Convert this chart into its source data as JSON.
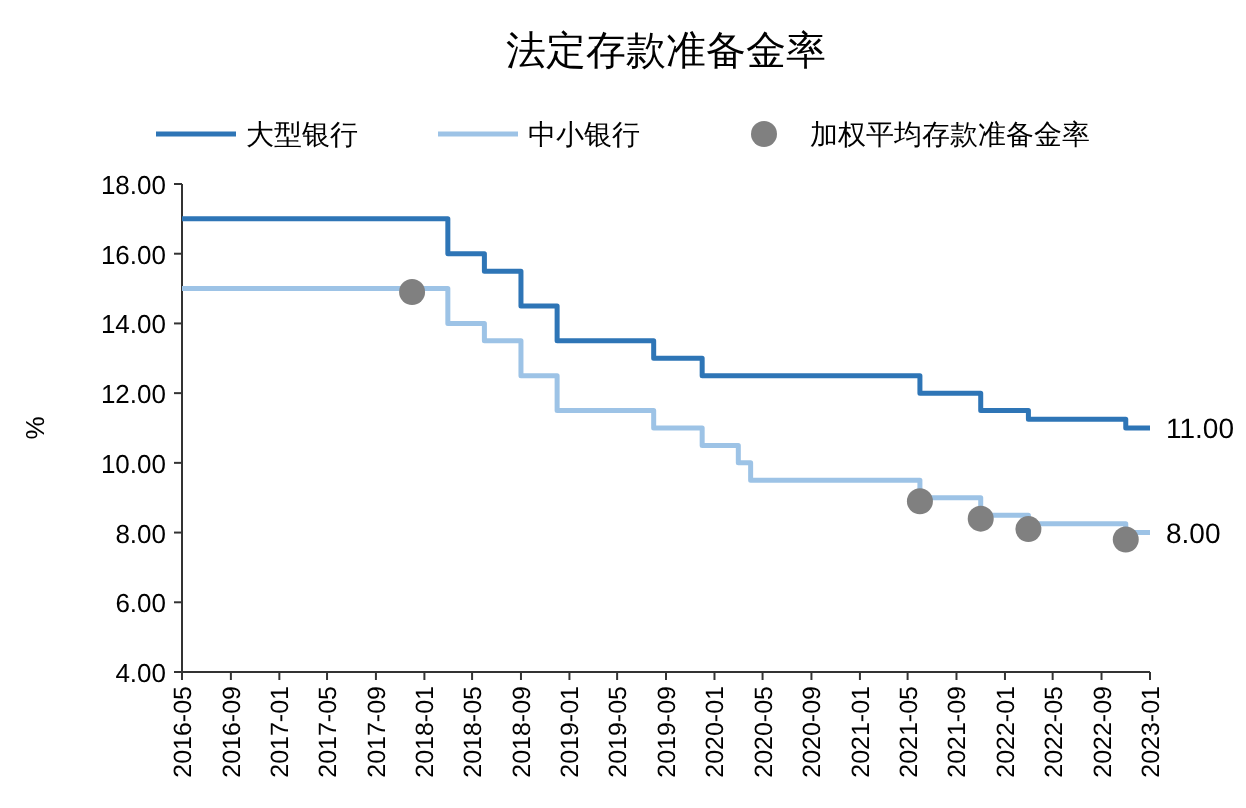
{
  "chart_data": {
    "type": "step",
    "title": "法定存款准备金率",
    "ylabel": "%",
    "xlim": [
      "2016-05",
      "2023-01"
    ],
    "xticks": [
      "2016-05",
      "2016-09",
      "2017-01",
      "2017-05",
      "2017-09",
      "2018-01",
      "2018-05",
      "2018-09",
      "2019-01",
      "2019-05",
      "2019-09",
      "2020-01",
      "2020-05",
      "2020-09",
      "2021-01",
      "2021-05",
      "2021-09",
      "2022-01",
      "2022-05",
      "2022-09",
      "2023-01"
    ],
    "ylim": [
      4,
      18
    ],
    "yticks": [
      {
        "value": 4,
        "label": "4.00"
      },
      {
        "value": 6,
        "label": "6.00"
      },
      {
        "value": 8,
        "label": "8.00"
      },
      {
        "value": 10,
        "label": "10.00"
      },
      {
        "value": 12,
        "label": "12.00"
      },
      {
        "value": 14,
        "label": "14.00"
      },
      {
        "value": 16,
        "label": "16.00"
      },
      {
        "value": 18,
        "label": "18.00"
      }
    ],
    "grid": false,
    "legend": "top",
    "series": [
      {
        "name": "大型银行",
        "type": "step",
        "color": "#2e75b6",
        "x": [
          "2016-05",
          "2018-03",
          "2018-06",
          "2018-09",
          "2018-12",
          "2019-08",
          "2019-12",
          "2021-06",
          "2021-11",
          "2022-03",
          "2022-11",
          "2023-01"
        ],
        "values": [
          17,
          16,
          15.5,
          14.5,
          13.5,
          13,
          12.5,
          12,
          11.5,
          11.25,
          11,
          11
        ],
        "value_labels": [
          null,
          null,
          null,
          null,
          null,
          null,
          null,
          null,
          null,
          null,
          null,
          "11.00"
        ]
      },
      {
        "name": "中小银行",
        "type": "step",
        "color": "#9dc3e6",
        "x": [
          "2016-05",
          "2018-03",
          "2018-06",
          "2018-09",
          "2018-12",
          "2019-08",
          "2019-12",
          "2020-03",
          "2020-04",
          "2021-06",
          "2021-11",
          "2022-03",
          "2022-11",
          "2023-01"
        ],
        "values": [
          15,
          14,
          13.5,
          12.5,
          11.5,
          11,
          10.5,
          10,
          9.5,
          9,
          8.5,
          8.25,
          8,
          8
        ],
        "value_labels": [
          null,
          null,
          null,
          null,
          null,
          null,
          null,
          null,
          null,
          null,
          null,
          null,
          null,
          "8.00"
        ]
      },
      {
        "name": "加权平均存款准备金率",
        "type": "scatter",
        "marker": "circle",
        "color": "#808080",
        "x": [
          "2017-12",
          "2021-06",
          "2021-11",
          "2022-03",
          "2022-11"
        ],
        "values": [
          14.9,
          8.9,
          8.4,
          8.1,
          7.8
        ]
      }
    ]
  }
}
